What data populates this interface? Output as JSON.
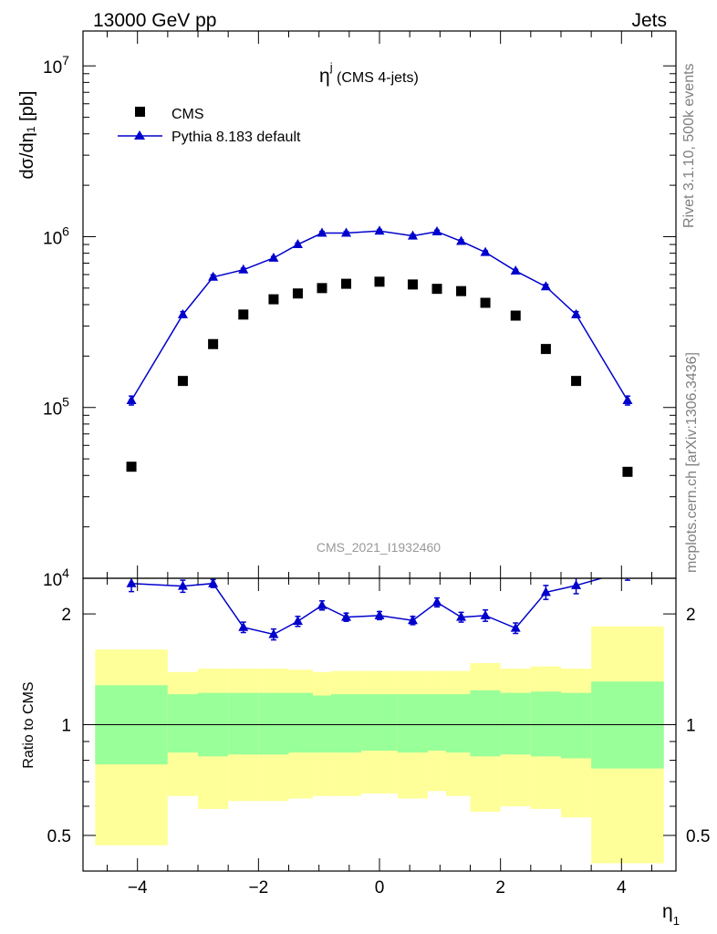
{
  "header": {
    "left": "13000 GeV pp",
    "right": "Jets"
  },
  "side_text": {
    "top": "Rivet 3.1.10,  500k events",
    "bottom": "mcplots.cern.ch [arXiv:1306.3436]"
  },
  "watermark": "CMS_2021_I1932460",
  "colors": {
    "mc": "#0000cc",
    "data": "#000000",
    "band_inner": "#99ff99",
    "band_outer": "#ffff99"
  },
  "chart_data": [
    {
      "type": "scatter",
      "panel": "main",
      "title_main": "η",
      "title_sup": "j",
      "title_rest": " (CMS 4-jets)",
      "ylabel": "dσ/dη₁ [pb]",
      "yscale": "log",
      "ylim": [
        10000,
        16000000
      ],
      "xlim": [
        -4.9,
        4.9
      ],
      "ytick_labels": [
        {
          "value": 10000,
          "base": "10",
          "exp": "4"
        },
        {
          "value": 100000,
          "base": "10",
          "exp": "5"
        },
        {
          "value": 1000000,
          "base": "10",
          "exp": "6"
        },
        {
          "value": 10000000,
          "base": "10",
          "exp": "7"
        }
      ],
      "legend_position": "top-left",
      "series": [
        {
          "name": "CMS",
          "marker": "square",
          "x": [
            -4.1,
            -3.25,
            -2.75,
            -2.25,
            -1.75,
            -1.35,
            -0.95,
            -0.55,
            0.0,
            0.55,
            0.95,
            1.35,
            1.75,
            2.25,
            2.75,
            3.25,
            4.1
          ],
          "y": [
            45000,
            143000,
            235000,
            350000,
            430000,
            465000,
            500000,
            530000,
            545000,
            525000,
            495000,
            480000,
            410000,
            345000,
            220000,
            143000,
            42000
          ]
        },
        {
          "name": "Pythia 8.183 default",
          "marker": "triangle",
          "x": [
            -4.1,
            -3.25,
            -2.75,
            -2.25,
            -1.75,
            -1.35,
            -0.95,
            -0.55,
            0.0,
            0.55,
            0.95,
            1.35,
            1.75,
            2.25,
            2.75,
            3.25,
            4.1
          ],
          "y": [
            110000,
            350000,
            580000,
            640000,
            750000,
            900000,
            1050000,
            1050000,
            1080000,
            1010000,
            1070000,
            940000,
            810000,
            630000,
            510000,
            350000,
            110000
          ],
          "rel_err": [
            0.06,
            0.04,
            0.03,
            0.02,
            0.02,
            0.02,
            0.02,
            0.02,
            0.02,
            0.02,
            0.02,
            0.02,
            0.02,
            0.02,
            0.03,
            0.04,
            0.06
          ]
        }
      ]
    },
    {
      "type": "line",
      "panel": "ratio",
      "ylabel": "Ratio to CMS",
      "xlabel_main": "η",
      "xlabel_sub": "1",
      "yscale": "log",
      "ylim": [
        0.4,
        2.5
      ],
      "xlim": [
        -4.9,
        4.9
      ],
      "xticks": [
        -4,
        -2,
        0,
        2,
        4
      ],
      "xtick_labels": [
        "−4",
        "−2",
        "0",
        "2",
        "4"
      ],
      "yticks": [
        0.5,
        1,
        2
      ],
      "ytick_labels": [
        "0.5",
        "1",
        "2"
      ],
      "reference_line": 1,
      "bins": [
        {
          "lo": -4.7,
          "hi": -3.5,
          "inner": [
            0.78,
            1.28
          ],
          "outer": [
            0.47,
            1.6
          ]
        },
        {
          "lo": -3.5,
          "hi": -3.0,
          "inner": [
            0.84,
            1.21
          ],
          "outer": [
            0.64,
            1.39
          ]
        },
        {
          "lo": -3.0,
          "hi": -2.5,
          "inner": [
            0.82,
            1.22
          ],
          "outer": [
            0.59,
            1.42
          ]
        },
        {
          "lo": -2.5,
          "hi": -2.0,
          "inner": [
            0.83,
            1.22
          ],
          "outer": [
            0.62,
            1.42
          ]
        },
        {
          "lo": -2.0,
          "hi": -1.5,
          "inner": [
            0.83,
            1.22
          ],
          "outer": [
            0.62,
            1.42
          ]
        },
        {
          "lo": -1.5,
          "hi": -1.1,
          "inner": [
            0.84,
            1.22
          ],
          "outer": [
            0.63,
            1.41
          ]
        },
        {
          "lo": -1.1,
          "hi": -0.8,
          "inner": [
            0.84,
            1.2
          ],
          "outer": [
            0.64,
            1.39
          ]
        },
        {
          "lo": -0.8,
          "hi": -0.3,
          "inner": [
            0.84,
            1.21
          ],
          "outer": [
            0.64,
            1.4
          ]
        },
        {
          "lo": -0.3,
          "hi": 0.3,
          "inner": [
            0.85,
            1.21
          ],
          "outer": [
            0.65,
            1.4
          ]
        },
        {
          "lo": 0.3,
          "hi": 0.8,
          "inner": [
            0.84,
            1.21
          ],
          "outer": [
            0.63,
            1.4
          ]
        },
        {
          "lo": 0.8,
          "hi": 1.1,
          "inner": [
            0.85,
            1.21
          ],
          "outer": [
            0.66,
            1.4
          ]
        },
        {
          "lo": 1.1,
          "hi": 1.5,
          "inner": [
            0.84,
            1.21
          ],
          "outer": [
            0.64,
            1.4
          ]
        },
        {
          "lo": 1.5,
          "hi": 2.0,
          "inner": [
            0.82,
            1.24
          ],
          "outer": [
            0.58,
            1.47
          ]
        },
        {
          "lo": 2.0,
          "hi": 2.5,
          "inner": [
            0.83,
            1.22
          ],
          "outer": [
            0.6,
            1.42
          ]
        },
        {
          "lo": 2.5,
          "hi": 3.0,
          "inner": [
            0.82,
            1.23
          ],
          "outer": [
            0.59,
            1.44
          ]
        },
        {
          "lo": 3.0,
          "hi": 3.5,
          "inner": [
            0.81,
            1.22
          ],
          "outer": [
            0.56,
            1.42
          ]
        },
        {
          "lo": 3.5,
          "hi": 4.7,
          "inner": [
            0.76,
            1.31
          ],
          "outer": [
            0.42,
            1.85
          ]
        }
      ],
      "series": [
        {
          "name": "Pythia 8.183 default",
          "x": [
            -4.1,
            -3.25,
            -2.75,
            -2.25,
            -1.75,
            -1.35,
            -0.95,
            -0.55,
            0.0,
            0.55,
            0.95,
            1.35,
            1.75,
            2.25,
            2.75,
            3.25,
            4.1
          ],
          "y": [
            2.42,
            2.38,
            2.42,
            1.84,
            1.76,
            1.91,
            2.11,
            1.96,
            1.98,
            1.92,
            2.15,
            1.96,
            1.98,
            1.83,
            2.29,
            2.39,
            2.62
          ],
          "err": [
            0.12,
            0.09,
            0.06,
            0.06,
            0.06,
            0.06,
            0.06,
            0.05,
            0.05,
            0.05,
            0.06,
            0.06,
            0.07,
            0.06,
            0.1,
            0.12,
            0.15
          ]
        }
      ]
    }
  ]
}
